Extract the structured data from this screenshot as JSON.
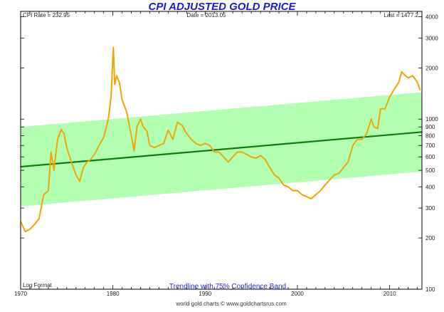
{
  "chart_data": {
    "type": "line",
    "title": "CPI ADJUSTED GOLD PRICE",
    "info_left": "CPI Rate = 232.95",
    "info_center": "Date = 2013.05",
    "info_right": "Last = 1477.2",
    "footer": "world gold charts © www.goldchartsrus.com",
    "annotation": "Trendline with 75% Confidence Band",
    "scale_label": "Log Format",
    "y_scale": "log",
    "xlim": [
      1970,
      2013.5
    ],
    "ylim": [
      100,
      4300
    ],
    "x_ticks": [
      1970,
      1980,
      1990,
      2000,
      2010
    ],
    "y_ticks": [
      100,
      200,
      300,
      400,
      500,
      600,
      700,
      800,
      900,
      1000,
      2000,
      3000,
      4000
    ],
    "colors": {
      "price_line": "#f0a500",
      "trend_line": "#0b7a0b",
      "band_fill": "#aaffaa",
      "title": "#1a1acc",
      "annotation": "#2a2acc"
    },
    "trendline": {
      "x": [
        1970,
        2013.5
      ],
      "y": [
        525,
        840
      ]
    },
    "band": {
      "upper": [
        900,
        1440
      ],
      "lower": [
        307,
        492
      ]
    },
    "series": [
      {
        "x": [
          1970,
          1970.5,
          1971,
          1971.5,
          1972,
          1972.5,
          1973,
          1973.3,
          1973.6,
          1974,
          1974.4,
          1974.7,
          1975,
          1975.5,
          1976,
          1976.4,
          1976.8,
          1977.2,
          1977.6,
          1978,
          1978.5,
          1979,
          1979.5,
          1979.8,
          1980.05,
          1980.2,
          1980.4,
          1980.7,
          1981,
          1981.5,
          1982,
          1982.3,
          1982.6,
          1983,
          1983.3,
          1983.7,
          1984,
          1984.5,
          1985,
          1985.5,
          1986,
          1986.5,
          1987,
          1987.5,
          1988,
          1988.5,
          1989,
          1989.5,
          1990,
          1990.5,
          1991,
          1991.5,
          1992,
          1992.5,
          1993,
          1993.5,
          1994,
          1994.5,
          1995,
          1995.5,
          1996,
          1996.5,
          1997,
          1997.5,
          1998,
          1998.5,
          1999,
          1999.5,
          2000,
          2000.5,
          2001,
          2001.5,
          2002,
          2002.5,
          2003,
          2003.5,
          2004,
          2004.5,
          2005,
          2005.5,
          2006,
          2006.5,
          2007,
          2007.5,
          2008,
          2008.3,
          2008.7,
          2009,
          2009.5,
          2010,
          2010.5,
          2011,
          2011.3,
          2011.7,
          2012,
          2012.5,
          2013,
          2013.3
        ],
        "values": [
          250,
          218,
          225,
          240,
          260,
          360,
          380,
          640,
          500,
          760,
          870,
          820,
          680,
          560,
          470,
          430,
          520,
          560,
          580,
          620,
          700,
          780,
          1000,
          1350,
          2650,
          1600,
          1800,
          1650,
          1300,
          1100,
          800,
          650,
          900,
          1000,
          900,
          850,
          700,
          680,
          700,
          720,
          860,
          760,
          960,
          920,
          820,
          760,
          720,
          700,
          720,
          700,
          640,
          640,
          600,
          560,
          600,
          640,
          640,
          620,
          600,
          590,
          610,
          580,
          520,
          470,
          450,
          410,
          400,
          380,
          380,
          360,
          350,
          340,
          360,
          380,
          410,
          440,
          470,
          480,
          520,
          560,
          700,
          760,
          760,
          820,
          1000,
          900,
          880,
          1150,
          1150,
          1350,
          1500,
          1650,
          1900,
          1800,
          1750,
          1800,
          1650,
          1480
        ]
      }
    ]
  }
}
